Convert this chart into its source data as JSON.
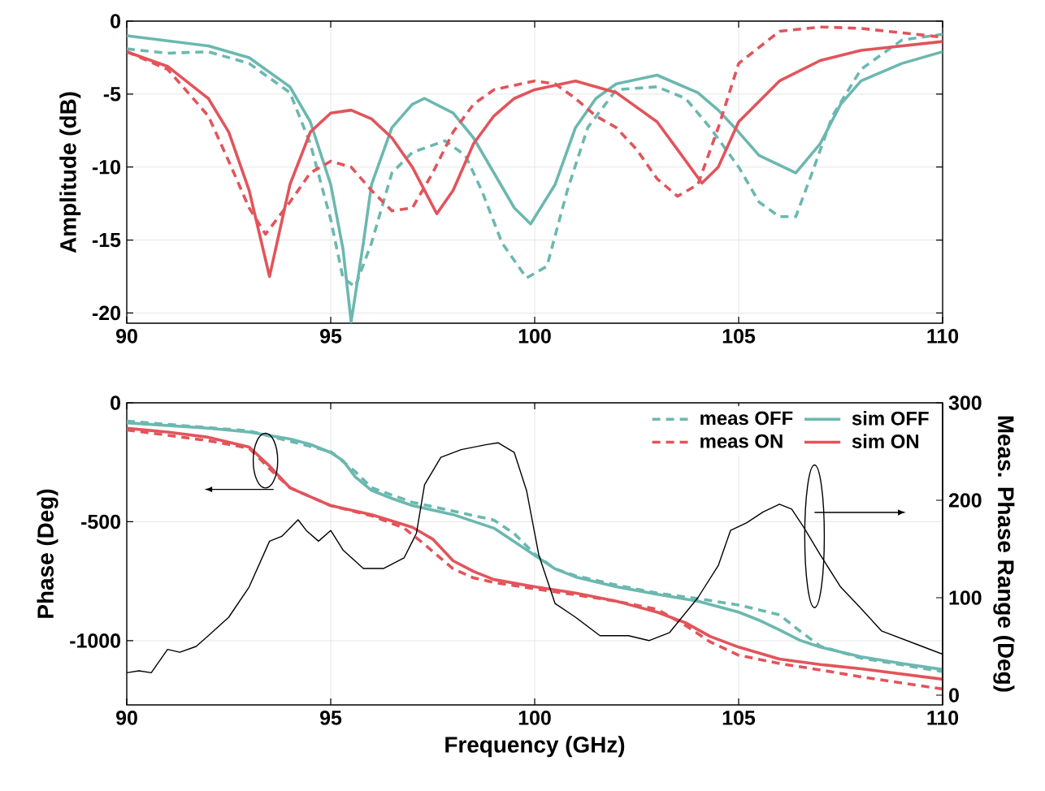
{
  "chart_data": [
    {
      "type": "line",
      "ylabel": "Amplitude (dB)",
      "xlim": [
        90,
        110
      ],
      "xticks": [
        90,
        95,
        100,
        105,
        110
      ],
      "ylim": [
        -20.7,
        0
      ],
      "yticks": [
        -20,
        -15,
        -10,
        -5,
        0
      ],
      "grid": true,
      "series": [
        {
          "color": "#6bb8b0",
          "line_style": "dashed",
          "x": [
            90,
            91,
            92,
            93,
            94,
            94.5,
            95,
            95.3,
            95.6,
            96,
            96.5,
            97,
            97.8,
            98.3,
            98.7,
            99.2,
            99.8,
            100.3,
            100.8,
            101.3,
            102,
            103,
            103.7,
            104.3,
            105,
            105.5,
            106,
            106.4,
            106.8,
            107.3,
            108,
            109,
            110
          ],
          "values": [
            -1.9,
            -2.2,
            -2.1,
            -2.9,
            -4.9,
            -8.4,
            -13.6,
            -17.6,
            -18.2,
            -15.2,
            -10.4,
            -9,
            -8.2,
            -9.2,
            -11.6,
            -15.2,
            -17.6,
            -16.8,
            -11.6,
            -7.3,
            -4.7,
            -4.5,
            -5.3,
            -7.3,
            -10,
            -12.4,
            -13.4,
            -13.4,
            -10.4,
            -6.5,
            -3.3,
            -1.3,
            -0.9
          ]
        },
        {
          "color": "#6bb8b0",
          "line_style": "solid",
          "x": [
            90,
            92,
            93,
            94,
            94.5,
            95,
            95.3,
            95.5,
            95.8,
            96,
            96.5,
            97,
            97.3,
            98,
            98.5,
            99,
            99.5,
            99.9,
            100.5,
            101,
            101.5,
            102,
            103,
            104,
            104.5,
            105,
            105.5,
            106.4,
            107,
            107.5,
            108,
            109,
            110
          ],
          "values": [
            -1,
            -1.7,
            -2.5,
            -4.5,
            -6.9,
            -11.2,
            -15.6,
            -20.6,
            -15.2,
            -11.2,
            -7.3,
            -5.7,
            -5.3,
            -6.3,
            -8,
            -10.4,
            -12.8,
            -13.9,
            -11.2,
            -7.3,
            -5.3,
            -4.3,
            -3.7,
            -4.9,
            -6.1,
            -7.6,
            -9.2,
            -10.4,
            -8.4,
            -5.7,
            -4.1,
            -2.9,
            -2.1
          ]
        },
        {
          "color": "#e2545b",
          "line_style": "dashed",
          "x": [
            90,
            91,
            92,
            92.5,
            93,
            93.4,
            94,
            94.5,
            95,
            95.5,
            96,
            96.5,
            97,
            97.5,
            98,
            98.5,
            99,
            100,
            100.5,
            101,
            101.5,
            102,
            102.5,
            103,
            103.5,
            104,
            104.5,
            105,
            106,
            107,
            108,
            110
          ],
          "values": [
            -2.1,
            -3.3,
            -6.5,
            -9.6,
            -12.8,
            -14.6,
            -12.4,
            -10.4,
            -9.6,
            -10,
            -11.6,
            -13,
            -12.8,
            -10.4,
            -7.6,
            -5.7,
            -4.7,
            -4.1,
            -4.3,
            -5.3,
            -6.5,
            -7.3,
            -8.8,
            -10.8,
            -12,
            -11.2,
            -7.3,
            -2.9,
            -0.7,
            -0.4,
            -0.5,
            -1.1
          ]
        },
        {
          "color": "#e2545b",
          "line_style": "solid",
          "x": [
            90,
            91,
            92,
            92.5,
            93,
            93.5,
            94,
            94.5,
            95,
            95.5,
            96,
            96.5,
            97,
            97.6,
            98,
            98.5,
            99,
            99.5,
            100,
            101,
            102,
            103,
            103.5,
            104.1,
            104.5,
            105,
            106,
            107,
            108,
            110
          ],
          "values": [
            -2.1,
            -3.1,
            -5.3,
            -7.6,
            -11.6,
            -17.5,
            -11.2,
            -7.6,
            -6.3,
            -6.1,
            -6.7,
            -8,
            -10,
            -13.2,
            -11.6,
            -8.4,
            -6.5,
            -5.3,
            -4.7,
            -4.1,
            -4.9,
            -6.9,
            -8.8,
            -11.1,
            -10,
            -6.9,
            -4.1,
            -2.7,
            -2,
            -1.4
          ]
        }
      ]
    },
    {
      "type": "line",
      "xlabel": "Frequency (GHz)",
      "ylabel": "Phase (Deg)",
      "y2label": "Meas. Phase Range (Deg)",
      "xlim": [
        90,
        110
      ],
      "xticks": [
        90,
        95,
        100,
        105,
        110
      ],
      "ylim": [
        -1270,
        0
      ],
      "yticks": [
        -1000,
        -500,
        0
      ],
      "y2lim": [
        -10,
        300
      ],
      "y2ticks": [
        0,
        100,
        200,
        300
      ],
      "grid": true,
      "legend": "top right",
      "series": [
        {
          "name": "meas OFF",
          "color": "#6bb8b0",
          "line_style": "dashed",
          "x": [
            90,
            93,
            95,
            95.6,
            96,
            97,
            98,
            99,
            99.5,
            100,
            100.5,
            101,
            102,
            103,
            104,
            105,
            106,
            106.5,
            107,
            108,
            110
          ],
          "values": [
            -77,
            -118,
            -205,
            -289,
            -357,
            -418,
            -455,
            -493,
            -550,
            -636,
            -698,
            -727,
            -766,
            -800,
            -823,
            -850,
            -891,
            -959,
            -1023,
            -1073,
            -1130
          ]
        },
        {
          "name": "sim OFF",
          "color": "#6bb8b0",
          "line_style": "solid",
          "x": [
            90,
            92,
            93,
            94,
            94.5,
            95,
            95.3,
            95.6,
            96,
            96.5,
            97,
            98,
            99,
            99.5,
            100,
            100.5,
            101,
            102,
            103,
            104,
            105,
            105.5,
            106,
            106.5,
            107,
            108,
            109,
            110
          ],
          "values": [
            -84,
            -107,
            -123,
            -152,
            -175,
            -209,
            -243,
            -311,
            -368,
            -402,
            -432,
            -470,
            -527,
            -584,
            -641,
            -698,
            -732,
            -773,
            -805,
            -834,
            -880,
            -914,
            -955,
            -998,
            -1027,
            -1068,
            -1096,
            -1121
          ]
        },
        {
          "name": "meas ON",
          "color": "#e2545b",
          "line_style": "dashed",
          "x": [
            90,
            92,
            93,
            93.5,
            94,
            95,
            96,
            96.8,
            97.3,
            98,
            98.5,
            99,
            100,
            101,
            102,
            103,
            103.7,
            104.3,
            105,
            106,
            107,
            108,
            110
          ],
          "values": [
            -114,
            -159,
            -191,
            -277,
            -357,
            -432,
            -475,
            -527,
            -595,
            -698,
            -736,
            -755,
            -782,
            -807,
            -834,
            -868,
            -936,
            -1005,
            -1061,
            -1096,
            -1123,
            -1152,
            -1203
          ]
        },
        {
          "name": "sim ON",
          "color": "#e2545b",
          "line_style": "solid",
          "x": [
            90,
            91,
            92,
            93,
            93.5,
            94,
            95,
            96,
            97,
            97.5,
            98,
            98.5,
            99,
            100,
            101,
            102,
            103,
            103.7,
            104.3,
            105,
            106,
            107,
            108,
            110
          ],
          "values": [
            -107,
            -123,
            -145,
            -186,
            -266,
            -357,
            -432,
            -470,
            -523,
            -573,
            -664,
            -709,
            -743,
            -773,
            -800,
            -834,
            -880,
            -925,
            -982,
            -1027,
            -1077,
            -1100,
            -1118,
            -1162
          ]
        },
        {
          "color": "#000000",
          "line_style": "solid",
          "axis": "y2",
          "x": [
            90,
            90.3,
            90.6,
            91,
            91.3,
            91.7,
            92,
            92.5,
            93,
            93.5,
            93.8,
            94.2,
            94.4,
            94.7,
            95,
            95.3,
            95.8,
            96.3,
            96.8,
            97.1,
            97.3,
            97.7,
            98.2,
            98.8,
            99.1,
            99.5,
            99.8,
            100.1,
            100.5,
            101,
            101.6,
            102.3,
            102.8,
            103.3,
            104,
            104.5,
            104.8,
            105.2,
            105.6,
            106,
            106.3,
            106.6,
            107,
            107.5,
            108,
            108.5,
            109,
            109.5,
            110
          ],
          "values": [
            23,
            25,
            23,
            47,
            44,
            50,
            61,
            80,
            111,
            158,
            163,
            180,
            169,
            158,
            169,
            149,
            130,
            130,
            141,
            166,
            216,
            244,
            252,
            257,
            259,
            249,
            210,
            144,
            94,
            80,
            61,
            61,
            56,
            64,
            100,
            133,
            169,
            177,
            188,
            196,
            191,
            172,
            144,
            111,
            89,
            66,
            58,
            50,
            42
          ]
        }
      ]
    }
  ]
}
